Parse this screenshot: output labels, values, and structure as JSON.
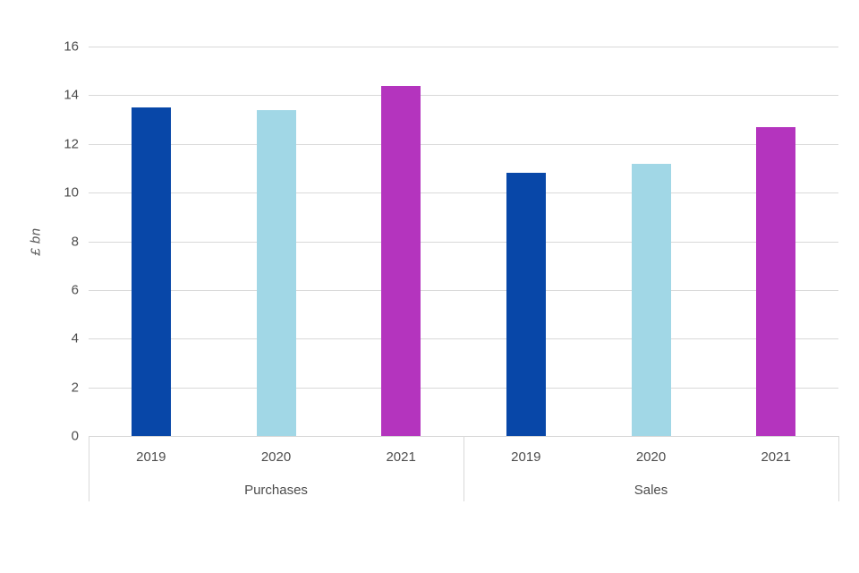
{
  "chart_data": {
    "type": "bar",
    "title": "",
    "ylabel": "£ bn",
    "xlabel": "",
    "ylim": [
      0,
      16
    ],
    "yticks": [
      0,
      2,
      4,
      6,
      8,
      10,
      12,
      14,
      16
    ],
    "grid": true,
    "legend": "none",
    "categories": [
      "2019",
      "2020",
      "2021"
    ],
    "series": [
      {
        "group": "Purchases",
        "values": [
          13.5,
          13.4,
          14.4
        ]
      },
      {
        "group": "Sales",
        "values": [
          10.8,
          11.2,
          12.7
        ]
      }
    ],
    "bar_colors_by_year": {
      "2019": "#0847A8",
      "2020": "#A1D7E6",
      "2021": "#B434BE"
    },
    "bar_colors": [
      "#0847A8",
      "#A1D7E6",
      "#B434BE"
    ],
    "colors": {
      "gridline": "#d9d9d9",
      "axis_line": "#d9d9d9",
      "tick_text": "#4d4d4d",
      "axis_title_text": "#595959",
      "background": "#ffffff"
    }
  }
}
